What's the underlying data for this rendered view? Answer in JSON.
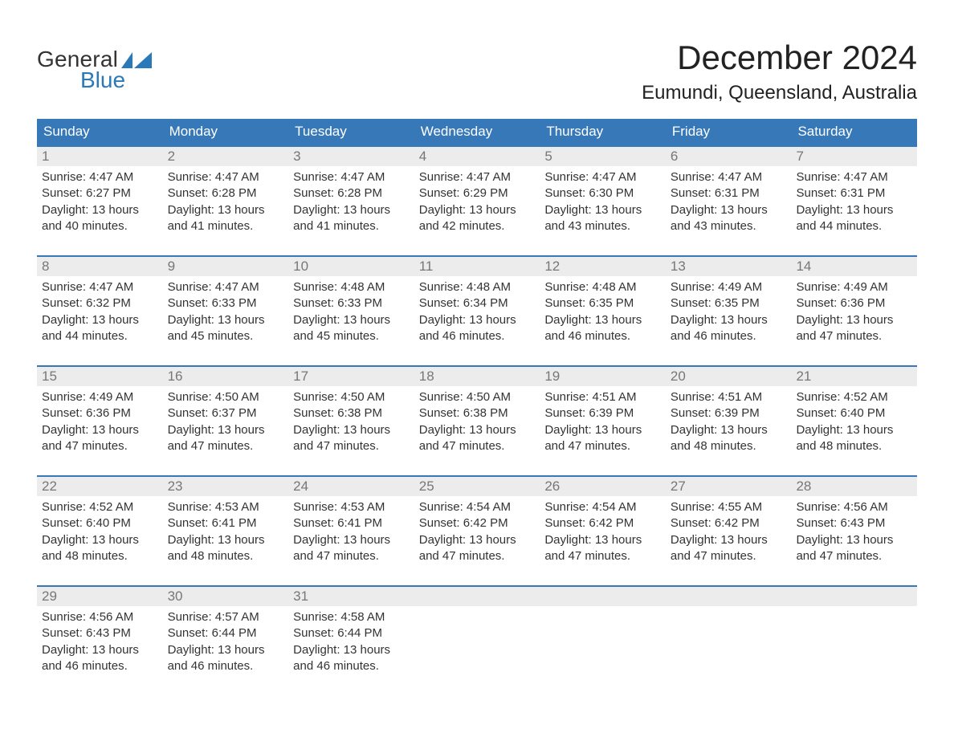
{
  "colors": {
    "header_bg": "#3678b8",
    "header_text": "#ffffff",
    "week_divider": "#3678b8",
    "daynum_bg": "#ececec",
    "daynum_text": "#777777",
    "body_text": "#333333",
    "brand_blue": "#2a7ab9",
    "page_bg": "#ffffff"
  },
  "logo": {
    "line1": "General",
    "line2": "Blue"
  },
  "title": "December 2024",
  "location": "Eumundi, Queensland, Australia",
  "dow": [
    "Sunday",
    "Monday",
    "Tuesday",
    "Wednesday",
    "Thursday",
    "Friday",
    "Saturday"
  ],
  "weeks": [
    [
      {
        "n": "1",
        "sr": "Sunrise: 4:47 AM",
        "ss": "Sunset: 6:27 PM",
        "d1": "Daylight: 13 hours",
        "d2": "and 40 minutes."
      },
      {
        "n": "2",
        "sr": "Sunrise: 4:47 AM",
        "ss": "Sunset: 6:28 PM",
        "d1": "Daylight: 13 hours",
        "d2": "and 41 minutes."
      },
      {
        "n": "3",
        "sr": "Sunrise: 4:47 AM",
        "ss": "Sunset: 6:28 PM",
        "d1": "Daylight: 13 hours",
        "d2": "and 41 minutes."
      },
      {
        "n": "4",
        "sr": "Sunrise: 4:47 AM",
        "ss": "Sunset: 6:29 PM",
        "d1": "Daylight: 13 hours",
        "d2": "and 42 minutes."
      },
      {
        "n": "5",
        "sr": "Sunrise: 4:47 AM",
        "ss": "Sunset: 6:30 PM",
        "d1": "Daylight: 13 hours",
        "d2": "and 43 minutes."
      },
      {
        "n": "6",
        "sr": "Sunrise: 4:47 AM",
        "ss": "Sunset: 6:31 PM",
        "d1": "Daylight: 13 hours",
        "d2": "and 43 minutes."
      },
      {
        "n": "7",
        "sr": "Sunrise: 4:47 AM",
        "ss": "Sunset: 6:31 PM",
        "d1": "Daylight: 13 hours",
        "d2": "and 44 minutes."
      }
    ],
    [
      {
        "n": "8",
        "sr": "Sunrise: 4:47 AM",
        "ss": "Sunset: 6:32 PM",
        "d1": "Daylight: 13 hours",
        "d2": "and 44 minutes."
      },
      {
        "n": "9",
        "sr": "Sunrise: 4:47 AM",
        "ss": "Sunset: 6:33 PM",
        "d1": "Daylight: 13 hours",
        "d2": "and 45 minutes."
      },
      {
        "n": "10",
        "sr": "Sunrise: 4:48 AM",
        "ss": "Sunset: 6:33 PM",
        "d1": "Daylight: 13 hours",
        "d2": "and 45 minutes."
      },
      {
        "n": "11",
        "sr": "Sunrise: 4:48 AM",
        "ss": "Sunset: 6:34 PM",
        "d1": "Daylight: 13 hours",
        "d2": "and 46 minutes."
      },
      {
        "n": "12",
        "sr": "Sunrise: 4:48 AM",
        "ss": "Sunset: 6:35 PM",
        "d1": "Daylight: 13 hours",
        "d2": "and 46 minutes."
      },
      {
        "n": "13",
        "sr": "Sunrise: 4:49 AM",
        "ss": "Sunset: 6:35 PM",
        "d1": "Daylight: 13 hours",
        "d2": "and 46 minutes."
      },
      {
        "n": "14",
        "sr": "Sunrise: 4:49 AM",
        "ss": "Sunset: 6:36 PM",
        "d1": "Daylight: 13 hours",
        "d2": "and 47 minutes."
      }
    ],
    [
      {
        "n": "15",
        "sr": "Sunrise: 4:49 AM",
        "ss": "Sunset: 6:36 PM",
        "d1": "Daylight: 13 hours",
        "d2": "and 47 minutes."
      },
      {
        "n": "16",
        "sr": "Sunrise: 4:50 AM",
        "ss": "Sunset: 6:37 PM",
        "d1": "Daylight: 13 hours",
        "d2": "and 47 minutes."
      },
      {
        "n": "17",
        "sr": "Sunrise: 4:50 AM",
        "ss": "Sunset: 6:38 PM",
        "d1": "Daylight: 13 hours",
        "d2": "and 47 minutes."
      },
      {
        "n": "18",
        "sr": "Sunrise: 4:50 AM",
        "ss": "Sunset: 6:38 PM",
        "d1": "Daylight: 13 hours",
        "d2": "and 47 minutes."
      },
      {
        "n": "19",
        "sr": "Sunrise: 4:51 AM",
        "ss": "Sunset: 6:39 PM",
        "d1": "Daylight: 13 hours",
        "d2": "and 47 minutes."
      },
      {
        "n": "20",
        "sr": "Sunrise: 4:51 AM",
        "ss": "Sunset: 6:39 PM",
        "d1": "Daylight: 13 hours",
        "d2": "and 48 minutes."
      },
      {
        "n": "21",
        "sr": "Sunrise: 4:52 AM",
        "ss": "Sunset: 6:40 PM",
        "d1": "Daylight: 13 hours",
        "d2": "and 48 minutes."
      }
    ],
    [
      {
        "n": "22",
        "sr": "Sunrise: 4:52 AM",
        "ss": "Sunset: 6:40 PM",
        "d1": "Daylight: 13 hours",
        "d2": "and 48 minutes."
      },
      {
        "n": "23",
        "sr": "Sunrise: 4:53 AM",
        "ss": "Sunset: 6:41 PM",
        "d1": "Daylight: 13 hours",
        "d2": "and 48 minutes."
      },
      {
        "n": "24",
        "sr": "Sunrise: 4:53 AM",
        "ss": "Sunset: 6:41 PM",
        "d1": "Daylight: 13 hours",
        "d2": "and 47 minutes."
      },
      {
        "n": "25",
        "sr": "Sunrise: 4:54 AM",
        "ss": "Sunset: 6:42 PM",
        "d1": "Daylight: 13 hours",
        "d2": "and 47 minutes."
      },
      {
        "n": "26",
        "sr": "Sunrise: 4:54 AM",
        "ss": "Sunset: 6:42 PM",
        "d1": "Daylight: 13 hours",
        "d2": "and 47 minutes."
      },
      {
        "n": "27",
        "sr": "Sunrise: 4:55 AM",
        "ss": "Sunset: 6:42 PM",
        "d1": "Daylight: 13 hours",
        "d2": "and 47 minutes."
      },
      {
        "n": "28",
        "sr": "Sunrise: 4:56 AM",
        "ss": "Sunset: 6:43 PM",
        "d1": "Daylight: 13 hours",
        "d2": "and 47 minutes."
      }
    ],
    [
      {
        "n": "29",
        "sr": "Sunrise: 4:56 AM",
        "ss": "Sunset: 6:43 PM",
        "d1": "Daylight: 13 hours",
        "d2": "and 46 minutes."
      },
      {
        "n": "30",
        "sr": "Sunrise: 4:57 AM",
        "ss": "Sunset: 6:44 PM",
        "d1": "Daylight: 13 hours",
        "d2": "and 46 minutes."
      },
      {
        "n": "31",
        "sr": "Sunrise: 4:58 AM",
        "ss": "Sunset: 6:44 PM",
        "d1": "Daylight: 13 hours",
        "d2": "and 46 minutes."
      },
      {
        "empty": true
      },
      {
        "empty": true
      },
      {
        "empty": true
      },
      {
        "empty": true
      }
    ]
  ]
}
